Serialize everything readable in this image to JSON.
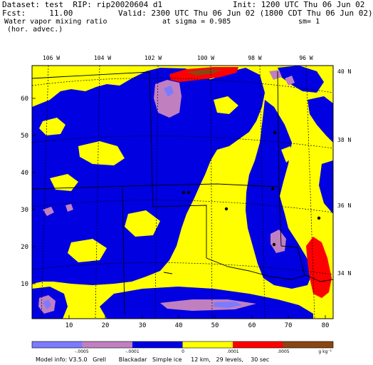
{
  "header": {
    "dataset_line": "Dataset: test  RIP: rip20020604 d1",
    "init_line": "Init: 1200 UTC Thu 06 Jun 02",
    "fcst_line": "Fcst:     11.00",
    "valid_line": "Valid: 2300 UTC Thu 06 Jun 02 (1800 CDT Thu 06 Jun 02)",
    "field_line1": "Water vapor mixing ratio",
    "sigma_line": "at sigma = 0.985",
    "sm_line": "sm= 1",
    "field_line2": "(hor. advec.)"
  },
  "map": {
    "lon_labels": [
      "106 W",
      "104 W",
      "102 W",
      "100 W",
      "98 W",
      "96 W"
    ],
    "lat_labels": [
      "40 N",
      "38 N",
      "36 N",
      "34 N"
    ],
    "x_ticks": [
      "10",
      "20",
      "30",
      "40",
      "50",
      "60",
      "70",
      "80"
    ],
    "y_ticks": [
      "60",
      "50",
      "40",
      "30",
      "20",
      "10"
    ]
  },
  "colorbar": {
    "colors": [
      "#7b7bff",
      "#c080c0",
      "#0000e0",
      "#ffff00",
      "#ff0000",
      "#8b4513"
    ],
    "labels": [
      "-.0005",
      "-.0001",
      "0",
      ".0001",
      ".0005"
    ],
    "units": "g kg⁻¹"
  },
  "footer": {
    "text": "Model info: V3.5.0   Grell       Blackadar   Simple ice     12 km,   29 levels,    30 sec"
  }
}
